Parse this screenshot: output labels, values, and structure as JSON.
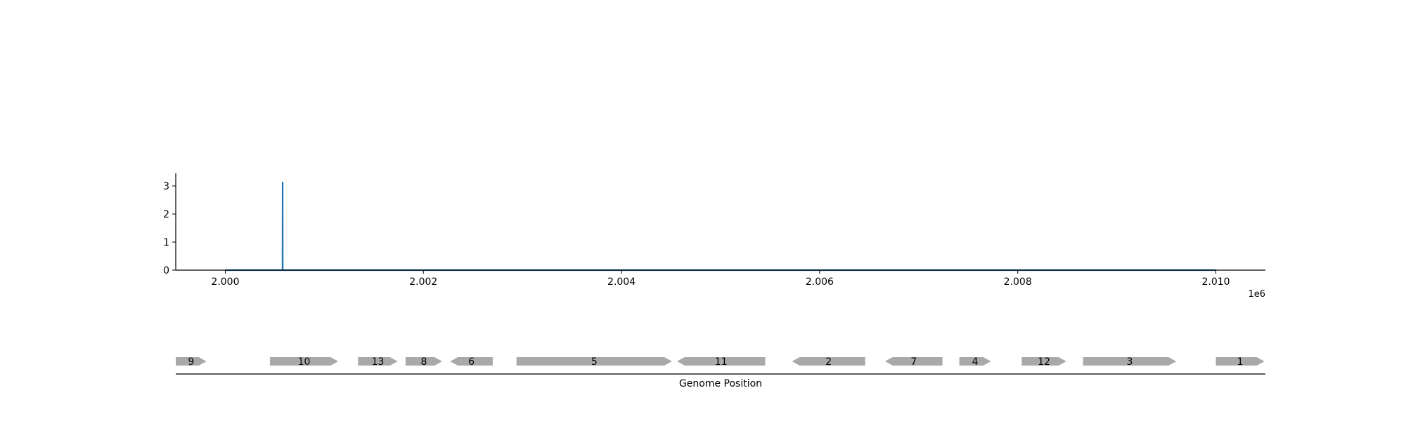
{
  "chart_data": [
    {
      "type": "line",
      "title": "",
      "xlabel": "",
      "ylabel": "",
      "x_offset_label": "1e6",
      "xlim": [
        1999500,
        2010500
      ],
      "ylim": [
        0,
        3.45
      ],
      "x_ticks": [
        2000000,
        2002000,
        2004000,
        2006000,
        2008000,
        2010000
      ],
      "x_tick_labels": [
        "2.000",
        "2.002",
        "2.004",
        "2.006",
        "2.008",
        "2.010"
      ],
      "y_ticks": [
        0,
        1,
        2,
        3
      ],
      "y_tick_labels": [
        "0",
        "1",
        "2",
        "3"
      ],
      "grid": false,
      "series": [
        {
          "color": "#1f77b4",
          "x": [
            2000000,
            2000578,
            2000579,
            2000580,
            2010000
          ],
          "y": [
            0,
            0,
            3.15,
            0,
            0
          ]
        }
      ]
    },
    {
      "type": "gene-track",
      "xlabel": "Genome Position",
      "color": "#a9a9a9",
      "genes": [
        {
          "label": "9",
          "start": 1999500,
          "end": 1999810,
          "strand": "+"
        },
        {
          "label": "10",
          "start": 2000450,
          "end": 2001140,
          "strand": "+"
        },
        {
          "label": "13",
          "start": 2001340,
          "end": 2001740,
          "strand": "+"
        },
        {
          "label": "8",
          "start": 2001820,
          "end": 2002190,
          "strand": "+"
        },
        {
          "label": "6",
          "start": 2002270,
          "end": 2002700,
          "strand": "-"
        },
        {
          "label": "5",
          "start": 2002940,
          "end": 2004510,
          "strand": "+"
        },
        {
          "label": "11",
          "start": 2004560,
          "end": 2005450,
          "strand": "-"
        },
        {
          "label": "2",
          "start": 2005720,
          "end": 2006460,
          "strand": "-"
        },
        {
          "label": "7",
          "start": 2006660,
          "end": 2007240,
          "strand": "-"
        },
        {
          "label": "4",
          "start": 2007410,
          "end": 2007730,
          "strand": "+"
        },
        {
          "label": "12",
          "start": 2008040,
          "end": 2008490,
          "strand": "+"
        },
        {
          "label": "3",
          "start": 2008660,
          "end": 2009600,
          "strand": "+"
        },
        {
          "label": "1",
          "start": 2010000,
          "end": 2010490,
          "strand": "+"
        }
      ]
    }
  ]
}
